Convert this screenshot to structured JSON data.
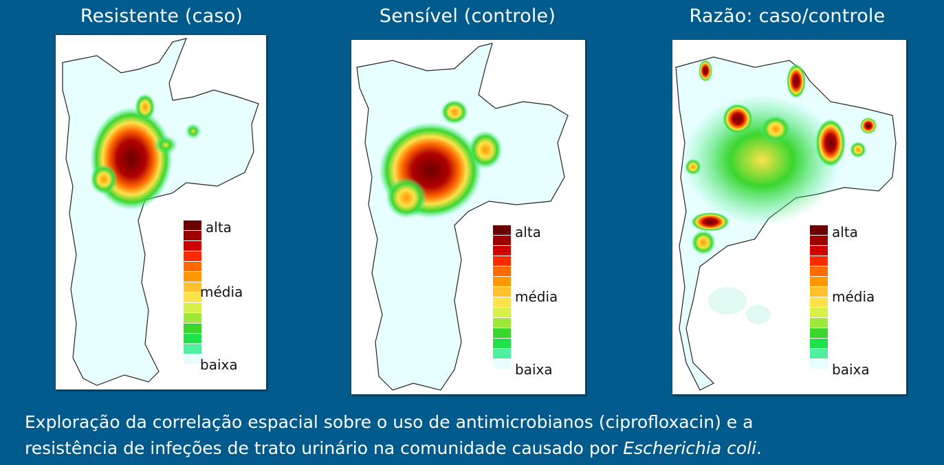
{
  "panels": [
    {
      "title": "Resistente (caso)"
    },
    {
      "title": "Sensível (controle)"
    },
    {
      "title": "Razão: caso/controle"
    }
  ],
  "legend": {
    "high": "alta",
    "mid": "média",
    "low": "baixa",
    "colors": [
      "#6b0000",
      "#9e0000",
      "#d10000",
      "#ff2a00",
      "#ff6a00",
      "#ff9800",
      "#ffc12e",
      "#ffe24a",
      "#d8f04a",
      "#9ee83a",
      "#3ad62e",
      "#1fe24a",
      "#4ff0a0",
      "#e8ffff"
    ]
  },
  "caption": {
    "line1": "Exploração da correlação espacial sobre o uso de antimicrobianos (ciprofloxacin) e a",
    "line2_prefix": "resistência de infeções de trato urinário na comunidade causado por ",
    "line2_italic": "Escherichia coli",
    "line2_suffix": "."
  }
}
